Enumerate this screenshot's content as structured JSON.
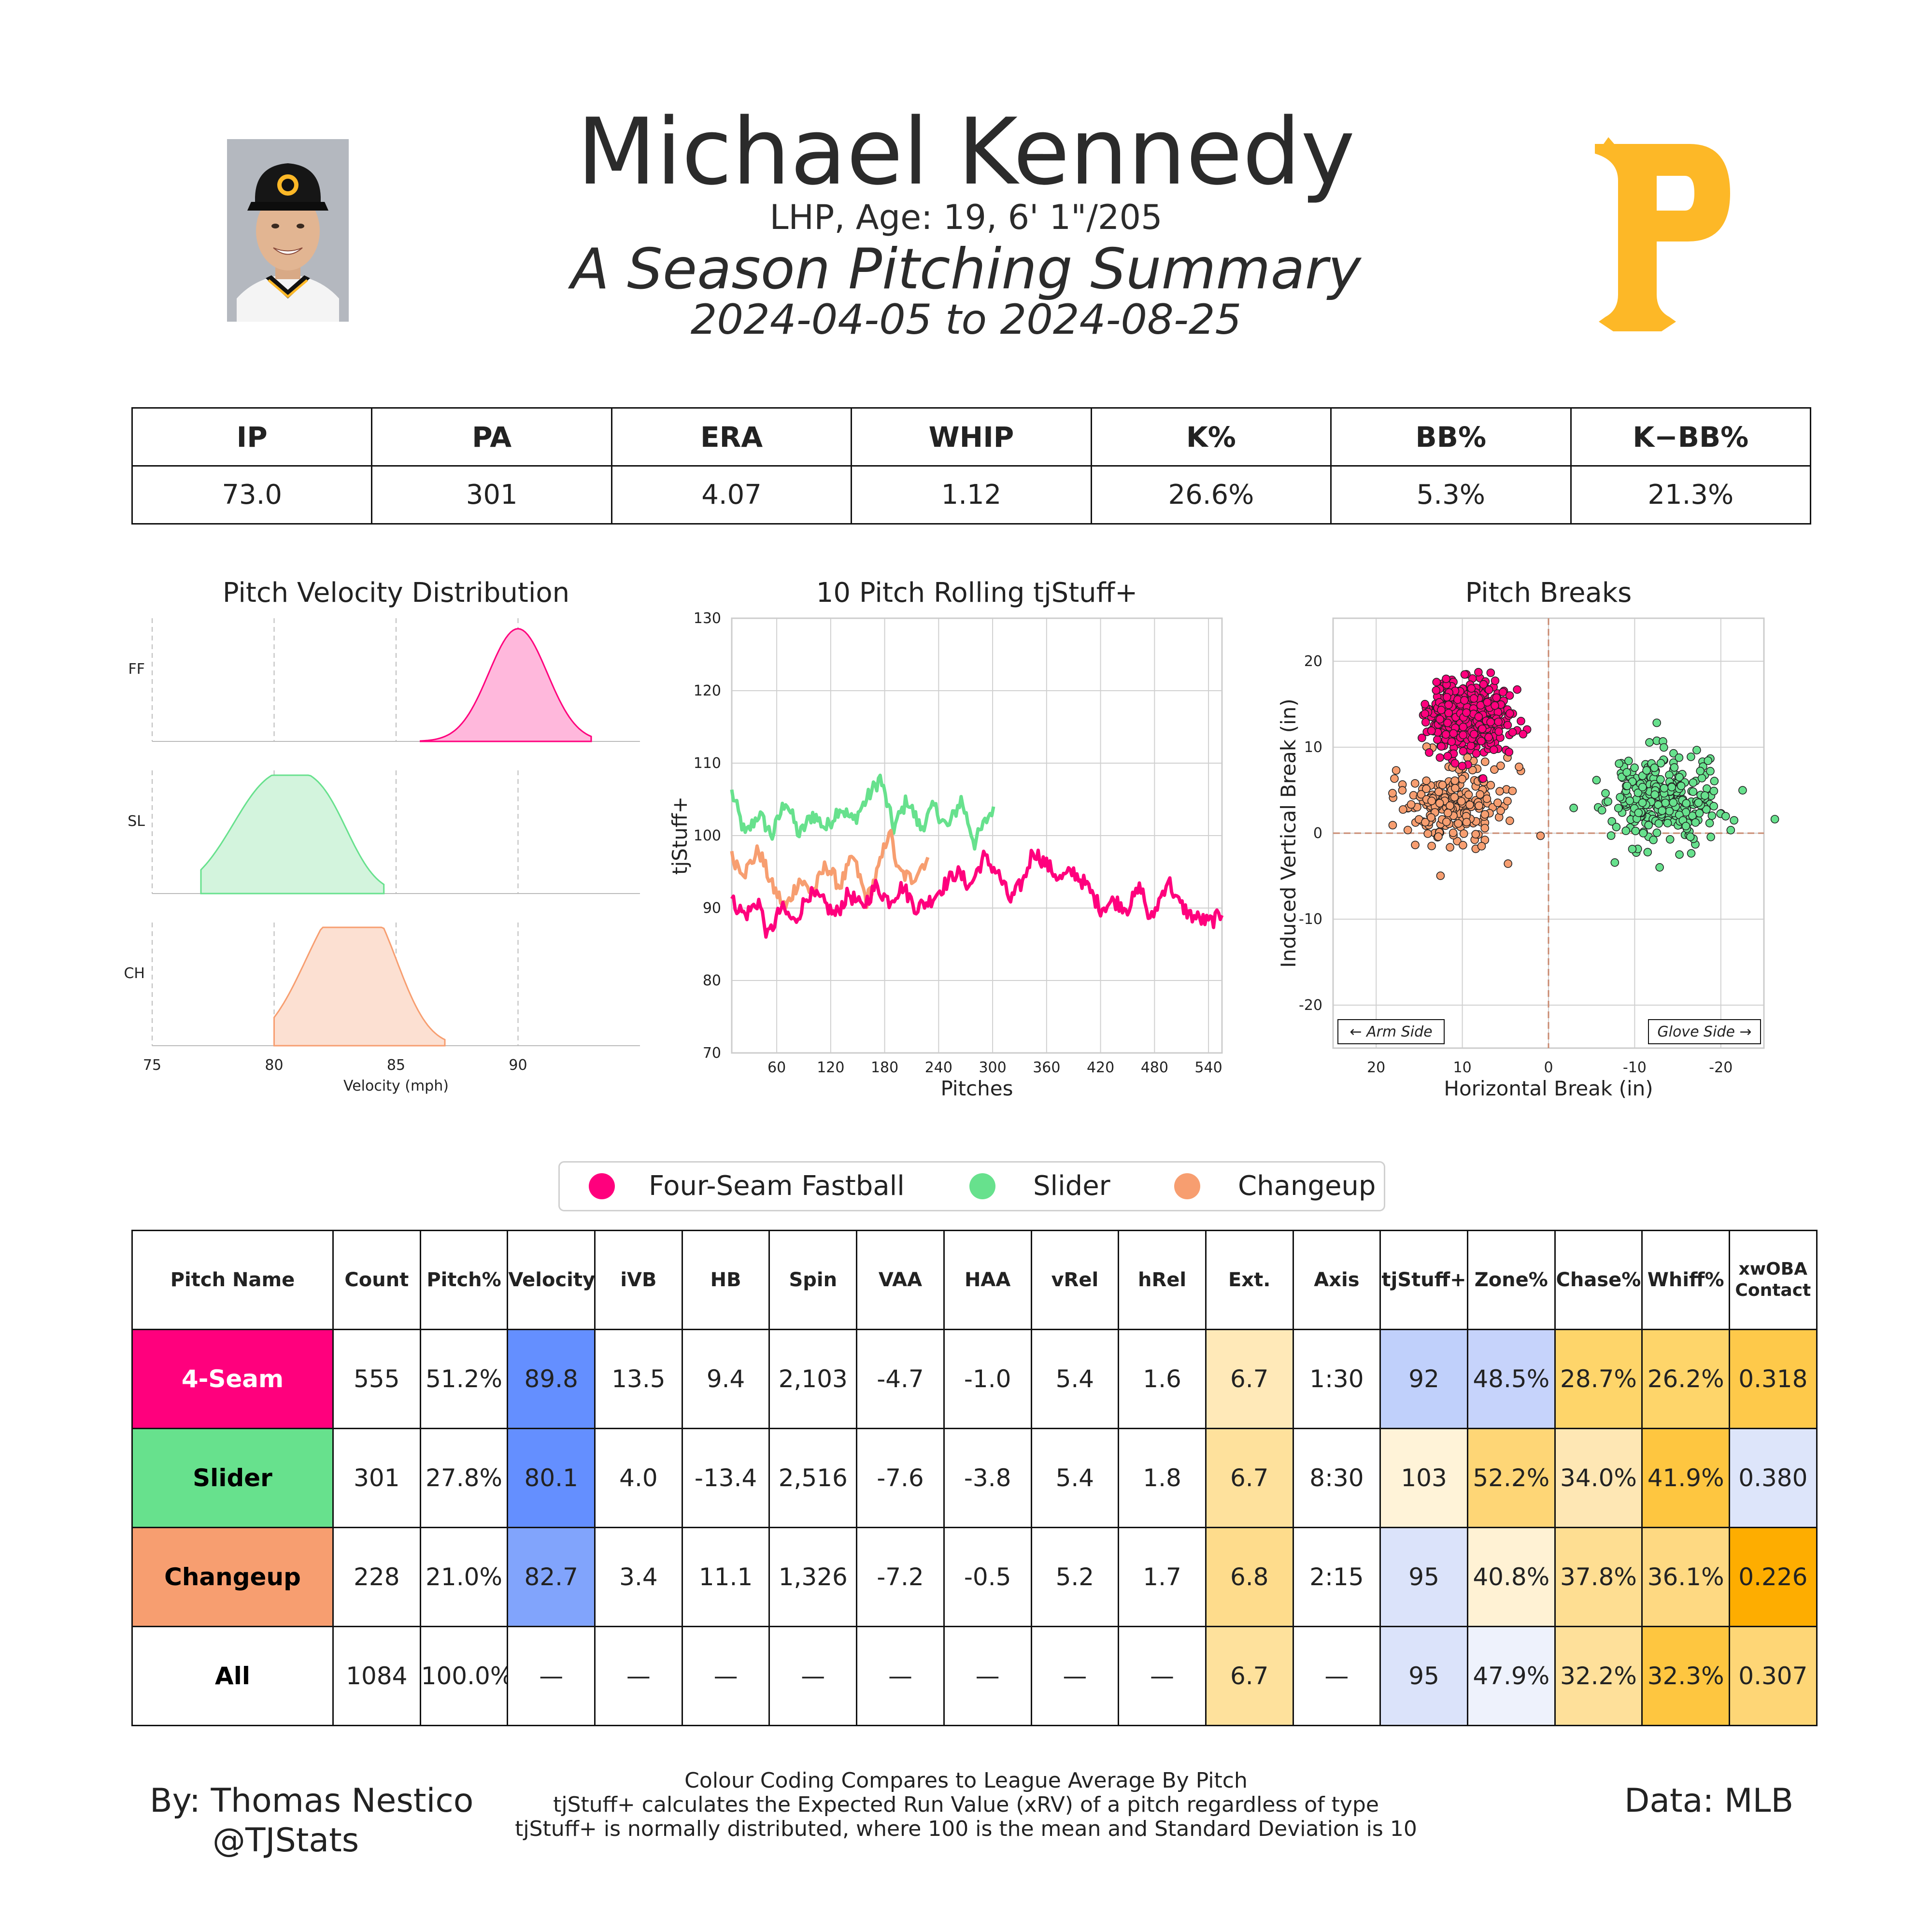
{
  "header": {
    "player_name": "Michael Kennedy",
    "player_info": "LHP, Age: 19, 6' 1\"/205",
    "title": "A Season Pitching Summary",
    "date_range": "2024-04-05 to 2024-08-25",
    "team_logo_letter": "P",
    "team_color": "#FDB827"
  },
  "stats": {
    "headers": [
      "IP",
      "PA",
      "ERA",
      "WHIP",
      "K%",
      "BB%",
      "K−BB%"
    ],
    "values": [
      "73.0",
      "301",
      "4.07",
      "1.12",
      "26.6%",
      "5.3%",
      "21.3%"
    ]
  },
  "colors": {
    "ff": "#FF007D",
    "sl": "#67E18D",
    "ch": "#F79E70"
  },
  "chart_data": [
    {
      "type": "area",
      "title": "Pitch Velocity Distribution",
      "xlabel": "Velocity (mph)",
      "xlim": [
        75,
        95
      ],
      "xticks": [
        "75",
        "80",
        "85",
        "90"
      ],
      "rows": [
        {
          "label": "FF",
          "peak": 90,
          "sd": 1.2,
          "range": [
            86,
            93
          ]
        },
        {
          "label": "SL",
          "peak": 80,
          "sd": 1.7,
          "range": [
            77,
            84.5
          ]
        },
        {
          "label": "CH",
          "peak": 82.5,
          "sd": 1.5,
          "range": [
            80,
            87
          ]
        }
      ]
    },
    {
      "type": "line",
      "title": "10 Pitch Rolling tjStuff+",
      "xlabel": "Pitches",
      "ylabel": "tjStuff+",
      "xlim": [
        10,
        555
      ],
      "ylim": [
        70,
        130
      ],
      "xticks": [
        "60",
        "120",
        "180",
        "240",
        "300",
        "360",
        "420",
        "480",
        "540"
      ],
      "yticks": [
        "70",
        "80",
        "90",
        "100",
        "110",
        "120",
        "130"
      ],
      "series": [
        {
          "key": "sl",
          "x_range": [
            10,
            301
          ],
          "points": [
            [
              10,
              106
            ],
            [
              25,
              100
            ],
            [
              40,
              103
            ],
            [
              55,
              100
            ],
            [
              70,
              105
            ],
            [
              85,
              100
            ],
            [
              100,
              103
            ],
            [
              115,
              101
            ],
            [
              130,
              104
            ],
            [
              145,
              102
            ],
            [
              160,
              105
            ],
            [
              175,
              108
            ],
            [
              190,
              101
            ],
            [
              205,
              105
            ],
            [
              220,
              101
            ],
            [
              235,
              104
            ],
            [
              250,
              101
            ],
            [
              265,
              105
            ],
            [
              280,
              99
            ],
            [
              301,
              104
            ]
          ]
        },
        {
          "key": "ch",
          "x_range": [
            10,
            228
          ],
          "points": [
            [
              10,
              97
            ],
            [
              25,
              95
            ],
            [
              40,
              98
            ],
            [
              55,
              93
            ],
            [
              70,
              90
            ],
            [
              85,
              94
            ],
            [
              100,
              92
            ],
            [
              115,
              96
            ],
            [
              130,
              93
            ],
            [
              145,
              97
            ],
            [
              160,
              91
            ],
            [
              175,
              96
            ],
            [
              185,
              101
            ],
            [
              195,
              95
            ],
            [
              210,
              94
            ],
            [
              228,
              97
            ]
          ]
        },
        {
          "key": "ff",
          "x_range": [
            10,
            555
          ],
          "points": [
            [
              10,
              91
            ],
            [
              25,
              89
            ],
            [
              40,
              91
            ],
            [
              50,
              86
            ],
            [
              65,
              90
            ],
            [
              80,
              88
            ],
            [
              95,
              92
            ],
            [
              110,
              91
            ],
            [
              125,
              89
            ],
            [
              140,
              92
            ],
            [
              155,
              90
            ],
            [
              170,
              93
            ],
            [
              185,
              91
            ],
            [
              200,
              93
            ],
            [
              215,
              90
            ],
            [
              230,
              91
            ],
            [
              245,
              93
            ],
            [
              260,
              95
            ],
            [
              275,
              93
            ],
            [
              290,
              97
            ],
            [
              305,
              95
            ],
            [
              320,
              91
            ],
            [
              335,
              94
            ],
            [
              345,
              98
            ],
            [
              360,
              96
            ],
            [
              375,
              94
            ],
            [
              390,
              95
            ],
            [
              405,
              93
            ],
            [
              420,
              90
            ],
            [
              435,
              91
            ],
            [
              450,
              90
            ],
            [
              465,
              93
            ],
            [
              475,
              88
            ],
            [
              485,
              91
            ],
            [
              495,
              94
            ],
            [
              505,
              91
            ],
            [
              520,
              89
            ],
            [
              540,
              88
            ],
            [
              555,
              89
            ]
          ]
        }
      ]
    },
    {
      "type": "scatter",
      "title": "Pitch Breaks",
      "xlabel": "Horizontal Break (in)",
      "ylabel": "Induced Vertical Break (in)",
      "xlim": [
        25,
        -25
      ],
      "ylim": [
        -25,
        25
      ],
      "xticks": [
        "20",
        "10",
        "0",
        "-10",
        "-20"
      ],
      "yticks": [
        "20",
        "10",
        "0",
        "-10",
        "-20"
      ],
      "annotations": [
        "← Arm Side",
        "Glove Side →"
      ],
      "clusters": [
        {
          "key": "ch",
          "count": 228,
          "hb_mean": 11.1,
          "ivb_mean": 3.4,
          "hb_sd": 3.0,
          "ivb_sd": 2.4
        },
        {
          "key": "sl",
          "count": 301,
          "hb_mean": -13.4,
          "ivb_mean": 4.0,
          "hb_sd": 3.2,
          "ivb_sd": 2.8
        },
        {
          "key": "ff",
          "count": 555,
          "hb_mean": 9.4,
          "ivb_mean": 13.5,
          "hb_sd": 2.2,
          "ivb_sd": 1.9
        }
      ]
    }
  ],
  "legend": [
    "Four-Seam Fastball",
    "Slider",
    "Changeup"
  ],
  "pitch_table": {
    "headers": [
      "Pitch Name",
      "Count",
      "Pitch%",
      "Velocity",
      "iVB",
      "HB",
      "Spin",
      "VAA",
      "HAA",
      "vRel",
      "hRel",
      "Ext.",
      "Axis",
      "tjStuff+",
      "Zone%",
      "Chase%",
      "Whiff%",
      "xwOBA Contact"
    ],
    "rows": [
      {
        "name": "4-Seam",
        "name_bg": "#FF007D",
        "name_color": "#ffffff",
        "cells": [
          "555",
          "51.2%",
          "89.8",
          "13.5",
          "9.4",
          "2,103",
          "-4.7",
          "-1.0",
          "5.4",
          "1.6",
          "6.7",
          "1:30",
          "92",
          "48.5%",
          "28.7%",
          "26.2%",
          "0.318"
        ],
        "bg": [
          "",
          "",
          "#648FFF",
          "",
          "",
          "",
          "",
          "",
          "",
          "",
          "#FFE9B8",
          "",
          "#C0D0FB",
          "#C6D3FB",
          "#FED56A",
          "#FED56A",
          "#FEC94A"
        ]
      },
      {
        "name": "Slider",
        "name_bg": "#67E18D",
        "name_color": "#000000",
        "cells": [
          "301",
          "27.8%",
          "80.1",
          "4.0",
          "-13.4",
          "2,516",
          "-7.6",
          "-3.8",
          "5.4",
          "1.8",
          "6.7",
          "8:30",
          "103",
          "52.2%",
          "34.0%",
          "41.9%",
          "0.380"
        ],
        "bg": [
          "",
          "",
          "#648FFF",
          "",
          "",
          "",
          "",
          "",
          "",
          "",
          "#FEE19C",
          "",
          "#FFF3D8",
          "#FED676",
          "#FEE7B4",
          "#FEC640",
          "#DDE5FA"
        ]
      },
      {
        "name": "Changeup",
        "name_bg": "#F79E70",
        "name_color": "#000000",
        "cells": [
          "228",
          "21.0%",
          "82.7",
          "3.4",
          "11.1",
          "1,326",
          "-7.2",
          "-0.5",
          "5.2",
          "1.7",
          "6.8",
          "2:15",
          "95",
          "40.8%",
          "37.8%",
          "36.1%",
          "0.226"
        ],
        "bg": [
          "",
          "",
          "#81A4FC",
          "",
          "",
          "",
          "",
          "",
          "",
          "",
          "#FEDC8C",
          "",
          "#DBE3FA",
          "#FFF2D4",
          "#FEDE92",
          "#FED982",
          "#FEAD00"
        ]
      },
      {
        "name": "All",
        "name_bg": "#ffffff",
        "name_color": "#000000",
        "cells": [
          "1084",
          "100.0%",
          "—",
          "—",
          "—",
          "—",
          "—",
          "—",
          "—",
          "—",
          "6.7",
          "—",
          "95",
          "47.9%",
          "32.2%",
          "32.3%",
          "0.307"
        ],
        "bg": [
          "",
          "",
          "",
          "",
          "",
          "",
          "",
          "",
          "",
          "",
          "#FEE19C",
          "",
          "#DBE3FA",
          "#EEF2FC",
          "#FEE09A",
          "#FEC640",
          "#FED676"
        ]
      }
    ]
  },
  "footer": {
    "author": "By: Thomas Nestico",
    "handle": "@TJStats",
    "notes": [
      "Colour Coding Compares to League Average By Pitch",
      "tjStuff+ calculates the Expected Run Value (xRV) of a pitch regardless of type",
      "tjStuff+ is normally distributed, where 100 is the mean and Standard Deviation is 10"
    ],
    "data_source": "Data: MLB"
  }
}
